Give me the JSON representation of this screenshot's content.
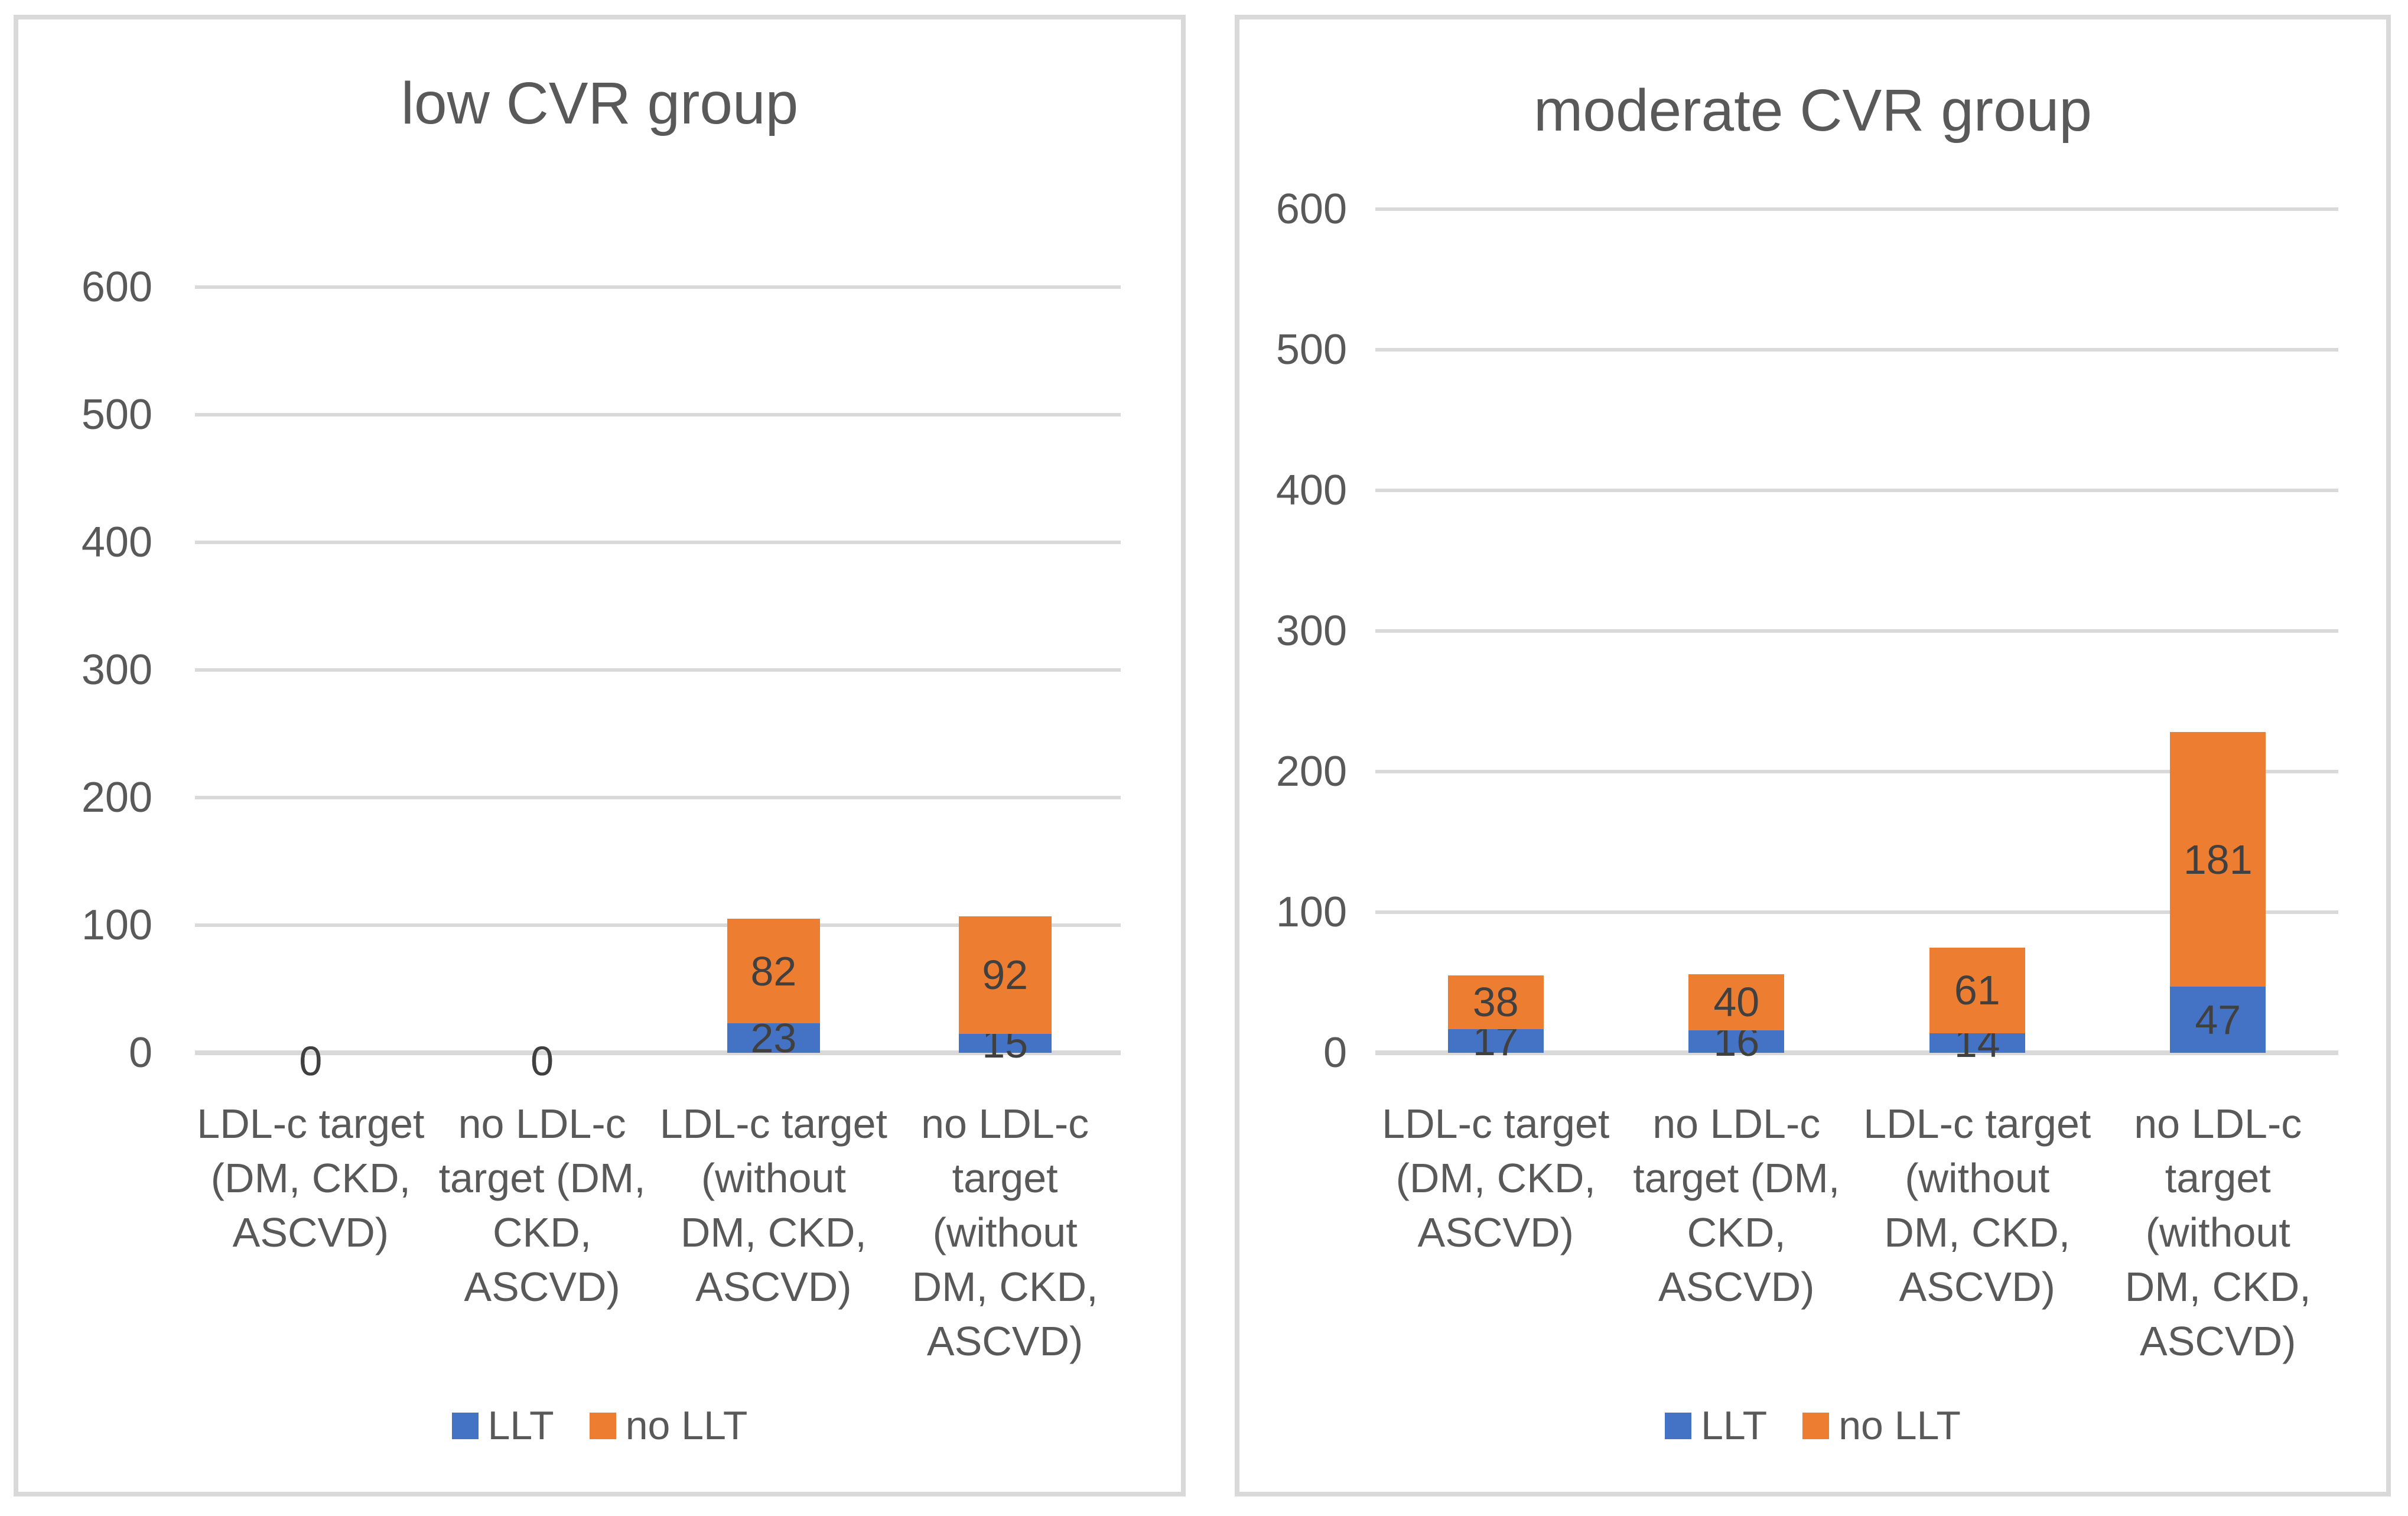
{
  "colors": {
    "llt": "#4472C4",
    "no_llt": "#ED7D31",
    "gridline": "#D9D9D9",
    "panel_border": "#D9D9D9",
    "axis_text": "#595959",
    "data_label_text": "#404040"
  },
  "chart_data": [
    {
      "type": "bar",
      "stacked": true,
      "title": "low CVR group",
      "xlabel": "",
      "ylabel": "",
      "ylim": [
        0,
        600
      ],
      "yticks": [
        0,
        100,
        200,
        300,
        400,
        500,
        600
      ],
      "grid": true,
      "legend_position": "bottom",
      "data_labels": true,
      "categories": [
        "LDL-c target\n(DM, CKD,\nASCVD)",
        "no LDL-c\ntarget (DM,\nCKD, ASCVD)",
        "LDL-c target\n(without\nDM, CKD,\nASCVD)",
        "no LDL-c\ntarget\n(without\nDM, CKD,\nASCVD)"
      ],
      "series": [
        {
          "name": "LLT",
          "color": "#4472C4",
          "values": [
            0,
            0,
            23,
            15
          ]
        },
        {
          "name": "no LLT",
          "color": "#ED7D31",
          "values": [
            0,
            0,
            82,
            92
          ]
        }
      ]
    },
    {
      "type": "bar",
      "stacked": true,
      "title": "moderate CVR group",
      "xlabel": "",
      "ylabel": "",
      "ylim": [
        0,
        600
      ],
      "yticks": [
        0,
        100,
        200,
        300,
        400,
        500,
        600
      ],
      "grid": true,
      "legend_position": "bottom",
      "data_labels": true,
      "categories": [
        "LDL-c target\n(DM, CKD,\nASCVD)",
        "no LDL-c\ntarget (DM,\nCKD, ASCVD)",
        "LDL-c target\n(without\nDM, CKD,\nASCVD)",
        "no LDL-c\ntarget\n(without\nDM, CKD,\nASCVD)"
      ],
      "series": [
        {
          "name": "LLT",
          "color": "#4472C4",
          "values": [
            17,
            16,
            14,
            47
          ]
        },
        {
          "name": "no LLT",
          "color": "#ED7D31",
          "values": [
            38,
            40,
            61,
            181
          ]
        }
      ]
    }
  ]
}
